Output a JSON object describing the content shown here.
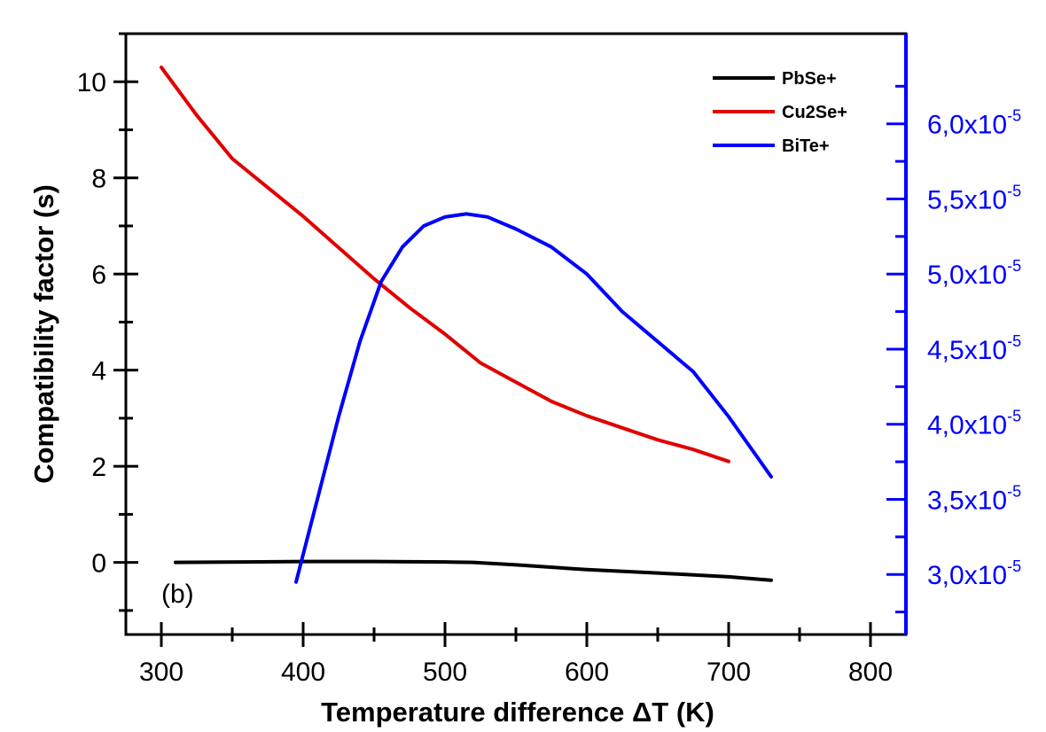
{
  "chart_data": {
    "type": "line",
    "xlabel": "Temperature difference ΔT (K)",
    "ylabel": "Compatibility factor (s)",
    "annotation": "(b)",
    "xlim": [
      275,
      825
    ],
    "ylim": [
      -1.5,
      11
    ],
    "y2lim": [
      2.6e-05,
      6.6e-05
    ],
    "x_ticks": [
      300,
      400,
      500,
      600,
      700,
      800
    ],
    "x_tick_labels": [
      "300",
      "400",
      "500",
      "600",
      "700",
      "800"
    ],
    "y_ticks": [
      0,
      2,
      4,
      6,
      8,
      10
    ],
    "y_tick_labels": [
      "0",
      "2",
      "4",
      "6",
      "8",
      "10"
    ],
    "y2_ticks": [
      3e-05,
      3.5e-05,
      4e-05,
      4.5e-05,
      5e-05,
      5.5e-05,
      6e-05
    ],
    "y2_tick_mantissas": [
      "3,0x10",
      "3,5x10",
      "4,0x10",
      "4,5x10",
      "5,0x10",
      "5,5x10",
      "6,0x10"
    ],
    "y2_tick_exponent": "-5",
    "legend_position": "top-right",
    "grid": false,
    "colors": {
      "left_axis": "#000000",
      "right_axis": "#0000ff"
    },
    "series": [
      {
        "name": "PbSe+",
        "color": "#000000",
        "axis": "left",
        "x": [
          310,
          360,
          400,
          450,
          500,
          520,
          550,
          600,
          650,
          700,
          730
        ],
        "y": [
          0,
          0.01,
          0.02,
          0.02,
          0.01,
          0,
          -0.05,
          -0.15,
          -0.22,
          -0.3,
          -0.37
        ]
      },
      {
        "name": "Cu2Se+",
        "color": "#e00000",
        "axis": "left",
        "x": [
          300,
          325,
          350,
          375,
          400,
          425,
          450,
          475,
          500,
          525,
          550,
          575,
          600,
          625,
          650,
          675,
          700
        ],
        "y": [
          10.3,
          9.3,
          8.4,
          7.8,
          7.2,
          6.55,
          5.9,
          5.3,
          4.75,
          4.15,
          3.75,
          3.35,
          3.05,
          2.8,
          2.55,
          2.35,
          2.1
        ]
      },
      {
        "name": "BiTe+",
        "color": "#0000ff",
        "axis": "right",
        "x": [
          395,
          410,
          425,
          440,
          455,
          470,
          485,
          500,
          515,
          530,
          550,
          575,
          600,
          625,
          650,
          675,
          700,
          715,
          730
        ],
        "y": [
          2.95e-05,
          3.5e-05,
          4.05e-05,
          4.55e-05,
          4.95e-05,
          5.18e-05,
          5.32e-05,
          5.38e-05,
          5.4e-05,
          5.38e-05,
          5.3e-05,
          5.18e-05,
          5e-05,
          4.75e-05,
          4.55e-05,
          4.35e-05,
          4.05e-05,
          3.85e-05,
          3.65e-05
        ]
      }
    ]
  }
}
